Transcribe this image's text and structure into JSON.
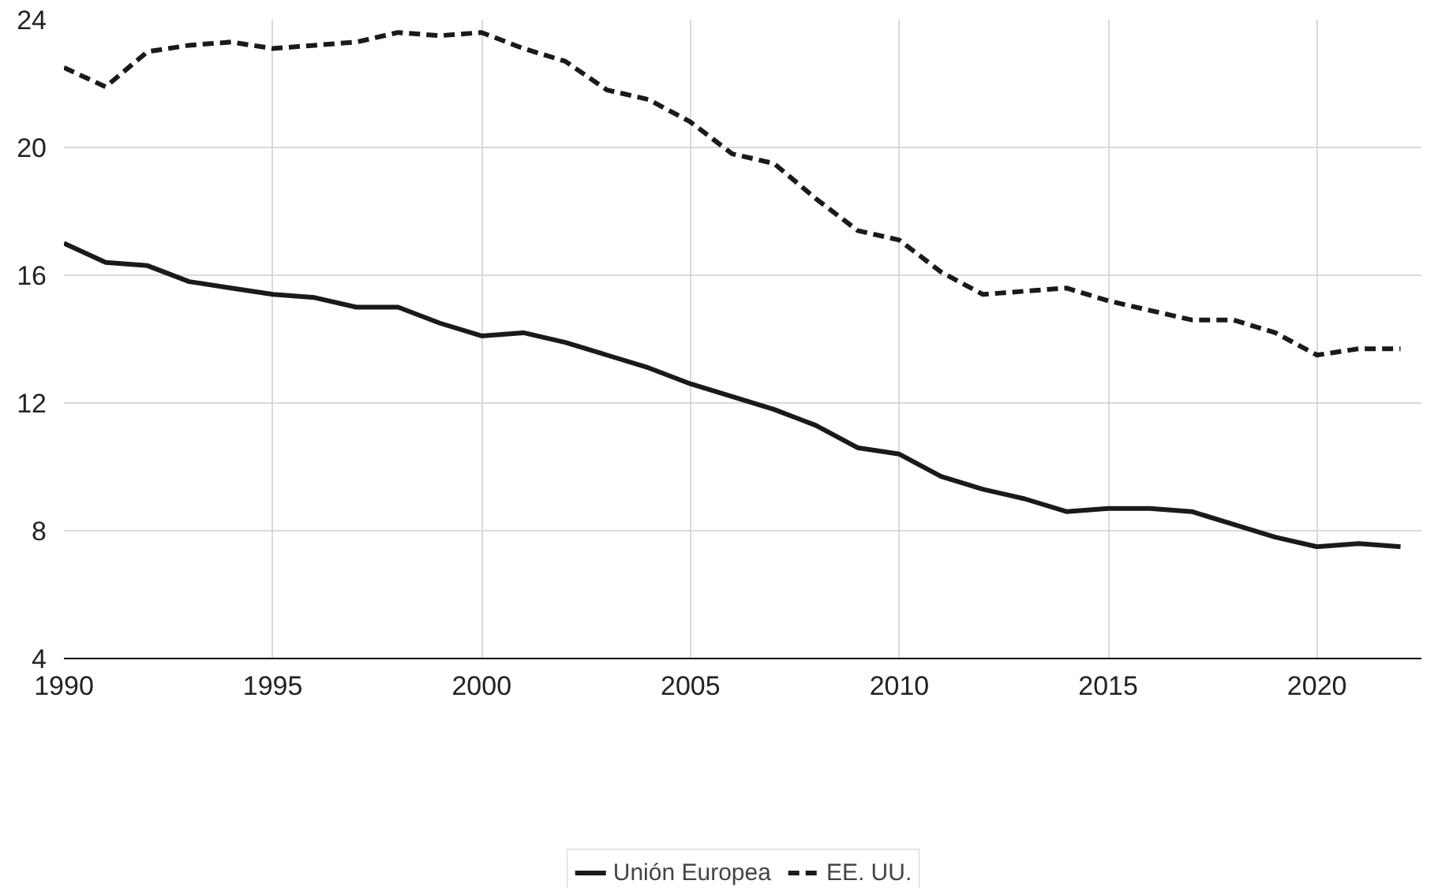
{
  "chart_data": {
    "type": "line",
    "x": [
      1990,
      1991,
      1992,
      1993,
      1994,
      1995,
      1996,
      1997,
      1998,
      1999,
      2000,
      2001,
      2002,
      2003,
      2004,
      2005,
      2006,
      2007,
      2008,
      2009,
      2010,
      2011,
      2012,
      2013,
      2014,
      2015,
      2016,
      2017,
      2018,
      2019,
      2020,
      2021,
      2022
    ],
    "series": [
      {
        "name": "Unión Europea",
        "color": "#1a1a1a",
        "line_style": "solid",
        "values": [
          17.0,
          16.4,
          16.3,
          15.8,
          15.6,
          15.4,
          15.3,
          15.0,
          15.0,
          14.5,
          14.1,
          14.2,
          13.9,
          13.5,
          13.1,
          12.6,
          12.2,
          11.8,
          11.3,
          10.6,
          10.4,
          9.7,
          9.3,
          9.0,
          8.6,
          8.7,
          8.7,
          8.6,
          8.2,
          7.8,
          7.5,
          7.6,
          7.5
        ]
      },
      {
        "name": "EE. UU.",
        "color": "#1a1a1a",
        "line_style": "dashed",
        "values": [
          22.5,
          21.9,
          23.0,
          23.2,
          23.3,
          23.1,
          23.2,
          23.3,
          23.6,
          23.5,
          23.6,
          23.1,
          22.7,
          21.8,
          21.5,
          20.8,
          19.8,
          19.5,
          18.4,
          17.4,
          17.1,
          16.1,
          15.4,
          15.5,
          15.6,
          15.2,
          14.9,
          14.6,
          14.6,
          14.2,
          13.5,
          13.7,
          13.7
        ]
      }
    ],
    "xlim": [
      1990,
      2022.5
    ],
    "ylim": [
      4,
      24
    ],
    "xticks": [
      1990,
      1995,
      2000,
      2005,
      2010,
      2015,
      2020
    ],
    "yticks": [
      4,
      8,
      12,
      16,
      20,
      24
    ],
    "grid": true,
    "legend": "bottom"
  }
}
